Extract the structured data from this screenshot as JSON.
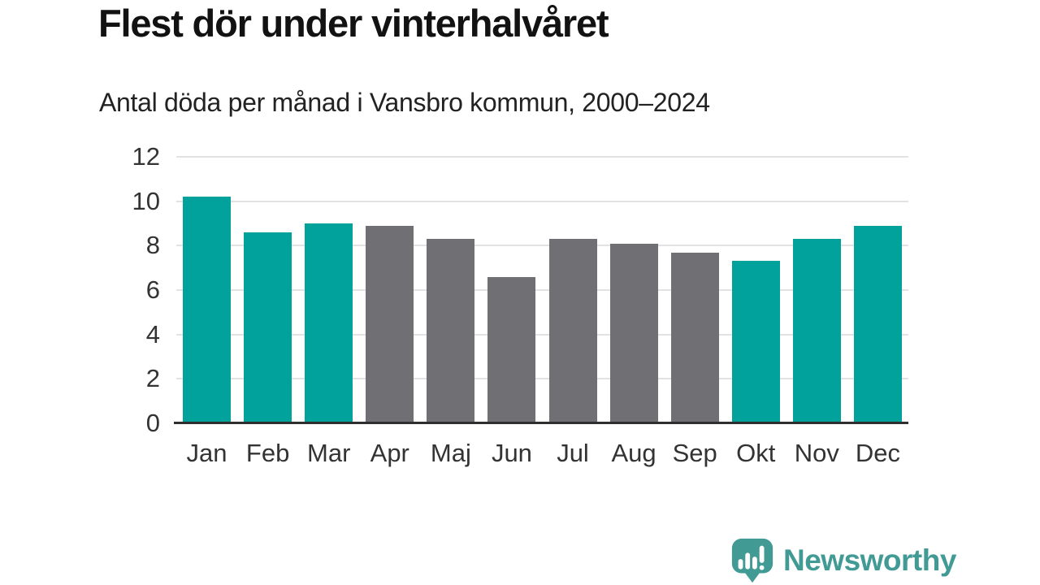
{
  "chart_data": {
    "type": "bar",
    "title": "Flest dör under vinterhalvåret",
    "subtitle": "Antal döda per månad i Vansbro kommun, 2000–2024",
    "categories": [
      "Jan",
      "Feb",
      "Mar",
      "Apr",
      "Maj",
      "Jun",
      "Jul",
      "Aug",
      "Sep",
      "Okt",
      "Nov",
      "Dec"
    ],
    "values": [
      10.2,
      8.6,
      9.0,
      8.9,
      8.3,
      6.6,
      8.3,
      8.1,
      7.7,
      7.3,
      8.3,
      8.9
    ],
    "bar_roles": [
      "highlight",
      "highlight",
      "highlight",
      "muted",
      "muted",
      "muted",
      "muted",
      "muted",
      "muted",
      "highlight",
      "highlight",
      "highlight"
    ],
    "xlabel": "",
    "ylabel": "",
    "ylim": [
      0,
      12
    ],
    "yticks": [
      0,
      2,
      4,
      6,
      8,
      10,
      12
    ],
    "grid": true,
    "legend": "none",
    "colors": {
      "highlight": "#00A29B",
      "muted": "#706F74",
      "axis": "#2E2E2E",
      "grid": "#E2E2E2",
      "label": "#333333"
    }
  },
  "footer": {
    "brand": "Newsworthy",
    "logo_color": "#429A95",
    "logo_icon": "bar-chart-speech-bubble"
  }
}
